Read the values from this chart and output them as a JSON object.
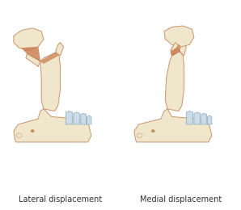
{
  "label_left": "Lateral displacement",
  "label_right": "Medial displacement",
  "background_color": "#ffffff",
  "bone_fill": "#f0e6cc",
  "bone_outline": "#c8956b",
  "bone_outline2": "#b07850",
  "tooth_fill": "#ccdce8",
  "tooth_outline": "#8aaabb",
  "fracture_fill": "#c87848",
  "label_fontsize": 7.0,
  "label_color": "#333333",
  "fig_width": 2.98,
  "fig_height": 2.6,
  "dpi": 100
}
